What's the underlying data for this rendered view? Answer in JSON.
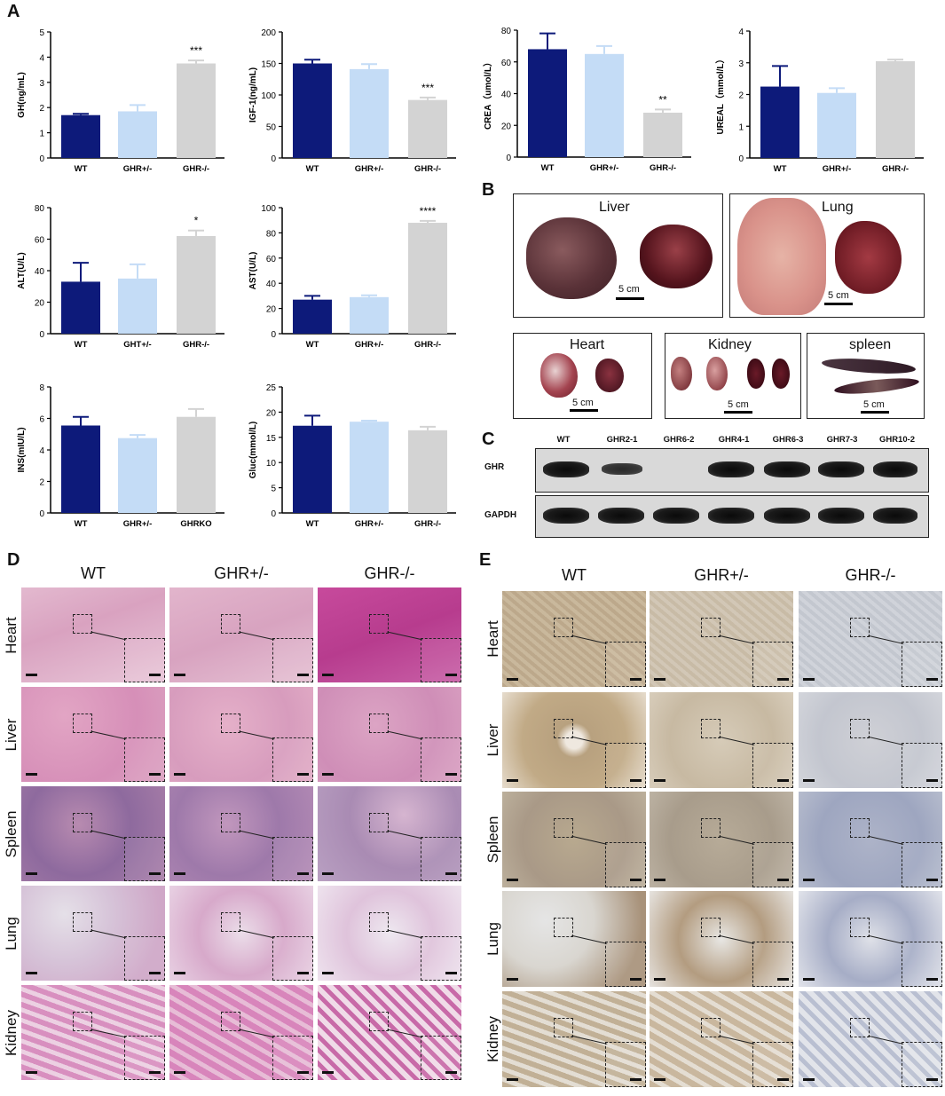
{
  "panel_labels": {
    "a": "A",
    "b": "B",
    "c": "C",
    "d": "D",
    "e": "E"
  },
  "chart_data": [
    {
      "type": "bar",
      "ylabel": "GH(ng/mL)",
      "categories": [
        "WT",
        "GHR+/-",
        "GHR-/-"
      ],
      "values": [
        1.7,
        1.85,
        3.75
      ],
      "errors": [
        0.05,
        0.25,
        0.12
      ],
      "ylim": [
        0,
        5
      ],
      "yticks": [
        0,
        1,
        2,
        3,
        4,
        5
      ],
      "annotations": [
        "",
        "",
        "***"
      ]
    },
    {
      "type": "bar",
      "ylabel": "IGF-1(ng/mL)",
      "categories": [
        "WT",
        "GHR+/-",
        "GHR-/-"
      ],
      "values": [
        150,
        141,
        92
      ],
      "errors": [
        6,
        8,
        4
      ],
      "ylim": [
        0,
        200
      ],
      "yticks": [
        0,
        50,
        100,
        150,
        200
      ],
      "annotations": [
        "",
        "",
        "***"
      ]
    },
    {
      "type": "bar",
      "ylabel": "CREA（umol/L）",
      "categories": [
        "WT",
        "GHR+/-",
        "GHR-/-"
      ],
      "values": [
        68,
        65,
        28
      ],
      "errors": [
        10,
        5,
        2
      ],
      "ylim": [
        0,
        80
      ],
      "yticks": [
        0,
        20,
        40,
        60,
        80
      ],
      "annotations": [
        "",
        "",
        "**"
      ]
    },
    {
      "type": "bar",
      "ylabel": "UREAL（mmol/L）",
      "categories": [
        "WT",
        "GHR+/-",
        "GHR-/-"
      ],
      "values": [
        2.25,
        2.05,
        3.05
      ],
      "errors": [
        0.65,
        0.15,
        0.05
      ],
      "ylim": [
        0,
        4
      ],
      "yticks": [
        0,
        1,
        2,
        3,
        4
      ],
      "annotations": [
        "",
        "",
        ""
      ]
    },
    {
      "type": "bar",
      "ylabel": "ALT(U/L)",
      "categories": [
        "WT",
        "GHT+/-",
        "GHR-/-"
      ],
      "values": [
        33,
        35,
        62
      ],
      "errors": [
        12,
        9,
        3.5
      ],
      "ylim": [
        0,
        80
      ],
      "yticks": [
        0,
        20,
        40,
        60,
        80
      ],
      "annotations": [
        "",
        "",
        "*"
      ]
    },
    {
      "type": "bar",
      "ylabel": "AST(U/L)",
      "categories": [
        "WT",
        "GHR+/-",
        "GHR-/-"
      ],
      "values": [
        27,
        29,
        88
      ],
      "errors": [
        3,
        1.5,
        1.5
      ],
      "ylim": [
        0,
        100
      ],
      "yticks": [
        0,
        20,
        40,
        60,
        80,
        100
      ],
      "annotations": [
        "",
        "",
        "****"
      ]
    },
    {
      "type": "bar",
      "ylabel": "INS(mIU/L)",
      "categories": [
        "WT",
        "GHR+/-",
        "GHRKO"
      ],
      "values": [
        5.55,
        4.75,
        6.1
      ],
      "errors": [
        0.55,
        0.2,
        0.5
      ],
      "ylim": [
        0,
        8
      ],
      "yticks": [
        0,
        2,
        4,
        6,
        8
      ],
      "annotations": [
        "",
        "",
        ""
      ]
    },
    {
      "type": "bar",
      "ylabel": "Gluc(mmol/L)",
      "categories": [
        "WT",
        "GHR+/-",
        "GHR-/-"
      ],
      "values": [
        17.3,
        18.1,
        16.4
      ],
      "errors": [
        2.0,
        0.2,
        0.7
      ],
      "ylim": [
        0,
        25
      ],
      "yticks": [
        0,
        5,
        10,
        15,
        20,
        25
      ],
      "annotations": [
        "",
        "",
        ""
      ]
    }
  ],
  "bar_colors": [
    "#0d1a7a",
    "#c4dcf6",
    "#d3d3d3"
  ],
  "photos": {
    "liver": {
      "title": "Liver",
      "scale": "5 cm"
    },
    "lung": {
      "title": "Lung",
      "scale": "5 cm"
    },
    "heart": {
      "title": "Heart",
      "scale": "5 cm"
    },
    "kidney": {
      "title": "Kidney",
      "scale": "5 cm"
    },
    "spleen": {
      "title": "spleen",
      "scale": "5 cm"
    }
  },
  "western": {
    "lanes": [
      "WT",
      "GHR2-1",
      "GHR6-2",
      "GHR4-1",
      "GHR6-3",
      "GHR7-3",
      "GHR10-2"
    ],
    "rows": [
      "GHR",
      "GAPDH"
    ]
  },
  "histology": {
    "columns": [
      "WT",
      "GHR+/-",
      "GHR-/-"
    ],
    "rows": [
      "Heart",
      "Liver",
      "Spleen",
      "Lung",
      "Kidney"
    ]
  }
}
